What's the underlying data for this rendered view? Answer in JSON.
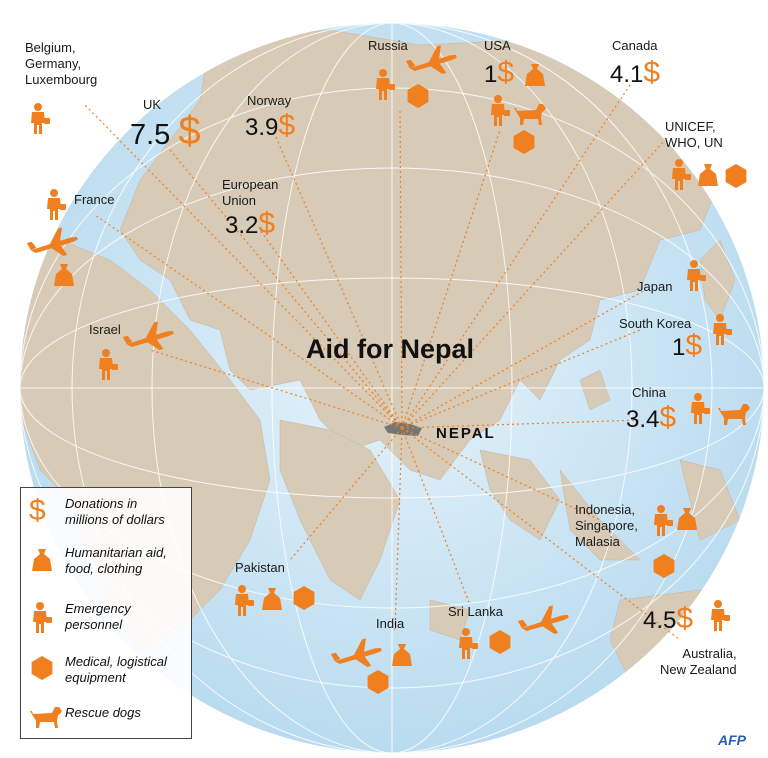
{
  "title": "Aid for Nepal",
  "center_label": "NEPAL",
  "credit": "AFP",
  "colors": {
    "accent": "#f07f20",
    "ocean": "#cfe6f4",
    "land": "#d7cab6",
    "route": "#f07f20"
  },
  "donors": [
    {
      "id": "belgium",
      "name": "Belgium,\nGermany,\nLuxembourg",
      "amount": "",
      "aid": [
        "personnel"
      ]
    },
    {
      "id": "uk",
      "name": "UK",
      "amount": "7.5",
      "aid": []
    },
    {
      "id": "norway",
      "name": "Norway",
      "amount": "3.9",
      "aid": []
    },
    {
      "id": "eu",
      "name": "European\nUnion",
      "amount": "3.2",
      "aid": []
    },
    {
      "id": "russia",
      "name": "Russia",
      "amount": "",
      "aid": [
        "plane",
        "personnel",
        "equipment"
      ]
    },
    {
      "id": "usa",
      "name": "USA",
      "amount": "1",
      "aid": [
        "humanitarian",
        "personnel",
        "dog",
        "equipment"
      ]
    },
    {
      "id": "canada",
      "name": "Canada",
      "amount": "4.1",
      "aid": []
    },
    {
      "id": "un",
      "name": "UNICEF,\nWHO, UN",
      "amount": "",
      "aid": [
        "personnel",
        "humanitarian",
        "equipment"
      ]
    },
    {
      "id": "france",
      "name": "France",
      "amount": "",
      "aid": [
        "personnel",
        "plane",
        "humanitarian"
      ]
    },
    {
      "id": "israel",
      "name": "Israel",
      "amount": "",
      "aid": [
        "plane",
        "personnel"
      ]
    },
    {
      "id": "japan",
      "name": "Japan",
      "amount": "",
      "aid": [
        "personnel"
      ]
    },
    {
      "id": "south-korea",
      "name": "South Korea",
      "amount": "1",
      "aid": [
        "personnel"
      ]
    },
    {
      "id": "china",
      "name": "China",
      "amount": "3.4",
      "aid": [
        "personnel",
        "dog"
      ]
    },
    {
      "id": "indonesia",
      "name": "Indonesia,\nSingapore,\nMalasia",
      "amount": "",
      "aid": [
        "personnel",
        "humanitarian",
        "equipment"
      ]
    },
    {
      "id": "australia",
      "name": "Australia,\nNew Zealand",
      "amount": "4.5",
      "aid": [
        "personnel"
      ]
    },
    {
      "id": "pakistan",
      "name": "Pakistan",
      "amount": "",
      "aid": [
        "personnel",
        "humanitarian",
        "equipment"
      ]
    },
    {
      "id": "india",
      "name": "India",
      "amount": "",
      "aid": [
        "plane",
        "humanitarian",
        "equipment"
      ]
    },
    {
      "id": "sri-lanka",
      "name": "Sri Lanka",
      "amount": "",
      "aid": [
        "personnel",
        "equipment",
        "plane"
      ]
    }
  ],
  "legend": [
    {
      "icon": "dollar-icon",
      "text": "Donations in\nmillions of dollars"
    },
    {
      "icon": "humanitarian-bag-icon",
      "text": "Humanitarian aid,\nfood, clothing"
    },
    {
      "icon": "personnel-icon",
      "text": "Emergency\npersonnel"
    },
    {
      "icon": "equipment-hexagon-icon",
      "text": "Medical, logistical\nequipment"
    },
    {
      "icon": "rescue-dog-icon",
      "text": "Rescue dogs"
    }
  ]
}
